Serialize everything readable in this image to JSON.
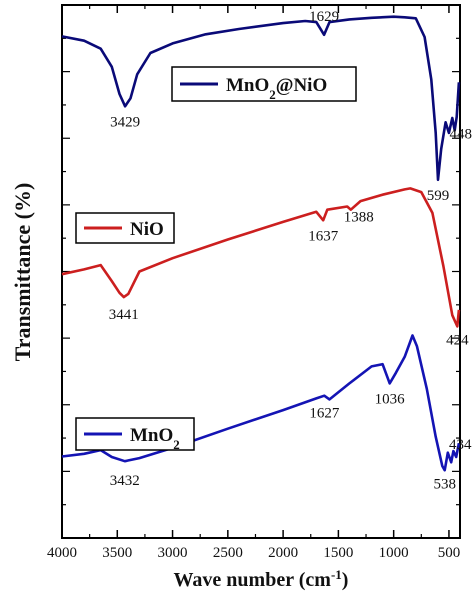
{
  "chart_data": {
    "type": "line",
    "xlabel": "Wave number (cm",
    "xlabel_sup": "-1",
    "xlabel_end": ")",
    "ylabel": "Transmittance (%)",
    "xlim": [
      4000,
      400
    ],
    "x_reversed": true,
    "x_ticks": [
      "4000",
      "3500",
      "3000",
      "2500",
      "2000",
      "1500",
      "1000",
      "500"
    ],
    "y_ticks_labeled": false,
    "legend_placement": "inside, above each trace",
    "colors": {
      "MnO2@NiO": "#0a0a78",
      "NiO": "#cc1f1f",
      "MnO2": "#1414b4"
    },
    "series": [
      {
        "name": "MnO2@NiO",
        "legend": {
          "pre": "MnO",
          "sub": "2",
          "post": "@NiO"
        },
        "points": [
          [
            4000,
            0.941
          ],
          [
            3800,
            0.933
          ],
          [
            3650,
            0.918
          ],
          [
            3550,
            0.884
          ],
          [
            3480,
            0.833
          ],
          [
            3429,
            0.81
          ],
          [
            3380,
            0.825
          ],
          [
            3320,
            0.87
          ],
          [
            3200,
            0.91
          ],
          [
            3000,
            0.928
          ],
          [
            2700,
            0.945
          ],
          [
            2400,
            0.955
          ],
          [
            2000,
            0.966
          ],
          [
            1800,
            0.97
          ],
          [
            1700,
            0.968
          ],
          [
            1629,
            0.944
          ],
          [
            1580,
            0.968
          ],
          [
            1400,
            0.973
          ],
          [
            1200,
            0.976
          ],
          [
            1000,
            0.978
          ],
          [
            900,
            0.977
          ],
          [
            800,
            0.975
          ],
          [
            720,
            0.94
          ],
          [
            660,
            0.86
          ],
          [
            620,
            0.76
          ],
          [
            599,
            0.672
          ],
          [
            570,
            0.73
          ],
          [
            530,
            0.78
          ],
          [
            500,
            0.76
          ],
          [
            470,
            0.788
          ],
          [
            448,
            0.765
          ],
          [
            430,
            0.79
          ],
          [
            410,
            0.855
          ]
        ],
        "annotations": [
          {
            "label": "3429",
            "x": 3429
          },
          {
            "label": "1629",
            "x": 1629
          },
          {
            "label": "599",
            "x": 599
          },
          {
            "label": "448",
            "x": 448
          }
        ]
      },
      {
        "name": "NiO",
        "legend": {
          "pre": "NiO",
          "sub": "",
          "post": ""
        },
        "points": [
          [
            4000,
            0.495
          ],
          [
            3800,
            0.504
          ],
          [
            3650,
            0.512
          ],
          [
            3550,
            0.482
          ],
          [
            3480,
            0.46
          ],
          [
            3441,
            0.452
          ],
          [
            3400,
            0.458
          ],
          [
            3300,
            0.5
          ],
          [
            3000,
            0.525
          ],
          [
            2500,
            0.56
          ],
          [
            2000,
            0.593
          ],
          [
            1700,
            0.612
          ],
          [
            1637,
            0.596
          ],
          [
            1600,
            0.616
          ],
          [
            1420,
            0.622
          ],
          [
            1388,
            0.616
          ],
          [
            1300,
            0.632
          ],
          [
            1100,
            0.644
          ],
          [
            900,
            0.654
          ],
          [
            850,
            0.656
          ],
          [
            750,
            0.649
          ],
          [
            650,
            0.61
          ],
          [
            550,
            0.51
          ],
          [
            470,
            0.418
          ],
          [
            424,
            0.397
          ],
          [
            410,
            0.428
          ]
        ],
        "annotations": [
          {
            "label": "3441",
            "x": 3441
          },
          {
            "label": "1637",
            "x": 1637
          },
          {
            "label": "1388",
            "x": 1388
          },
          {
            "label": "424",
            "x": 424
          }
        ]
      },
      {
        "name": "MnO2",
        "legend": {
          "pre": "MnO",
          "sub": "2",
          "post": ""
        },
        "points": [
          [
            4000,
            0.153
          ],
          [
            3800,
            0.158
          ],
          [
            3650,
            0.165
          ],
          [
            3550,
            0.152
          ],
          [
            3432,
            0.144
          ],
          [
            3300,
            0.15
          ],
          [
            3000,
            0.169
          ],
          [
            2500,
            0.205
          ],
          [
            2000,
            0.24
          ],
          [
            1700,
            0.262
          ],
          [
            1627,
            0.267
          ],
          [
            1580,
            0.26
          ],
          [
            1400,
            0.29
          ],
          [
            1200,
            0.322
          ],
          [
            1100,
            0.326
          ],
          [
            1036,
            0.29
          ],
          [
            980,
            0.31
          ],
          [
            900,
            0.34
          ],
          [
            830,
            0.38
          ],
          [
            790,
            0.36
          ],
          [
            700,
            0.28
          ],
          [
            620,
            0.19
          ],
          [
            560,
            0.135
          ],
          [
            538,
            0.127
          ],
          [
            510,
            0.16
          ],
          [
            480,
            0.142
          ],
          [
            460,
            0.163
          ],
          [
            434,
            0.152
          ],
          [
            410,
            0.178
          ]
        ],
        "annotations": [
          {
            "label": "3432",
            "x": 3432
          },
          {
            "label": "1627",
            "x": 1627
          },
          {
            "label": "1036",
            "x": 1036
          },
          {
            "label": "538",
            "x": 538
          },
          {
            "label": "434",
            "x": 434
          }
        ]
      }
    ]
  }
}
